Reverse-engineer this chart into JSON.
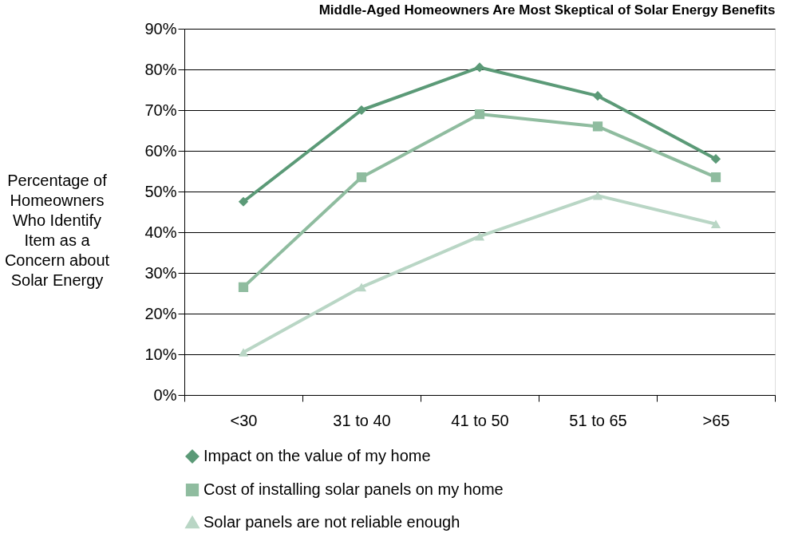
{
  "chart_data": {
    "type": "line",
    "title": "Middle-Aged Homeowners Are Most Skeptical of Solar Energy Benefits",
    "ylabel": "Percentage of\nHomeowners\nWho Identify\nItem as a\nConcern about\nSolar Energy",
    "categories": [
      "<30",
      "31 to 40",
      "41 to 50",
      "51 to 65",
      ">65"
    ],
    "series": [
      {
        "name": "Impact on the value of my home",
        "color": "#5b9a77",
        "marker": "diamond",
        "values": [
          47.5,
          70,
          80.5,
          73.5,
          58
        ]
      },
      {
        "name": "Cost of installing solar panels on my home",
        "color": "#8fbc9f",
        "marker": "square",
        "values": [
          26.5,
          53.5,
          69,
          66,
          53.5
        ]
      },
      {
        "name": "Solar panels are not reliable enough",
        "color": "#b9d6c5",
        "marker": "triangle",
        "values": [
          10.5,
          26.5,
          39,
          49,
          42
        ]
      }
    ],
    "ylim": [
      0,
      90
    ],
    "yticks": [
      {
        "value": 0,
        "label": "0%"
      },
      {
        "value": 10,
        "label": "10%"
      },
      {
        "value": 20,
        "label": "20%"
      },
      {
        "value": 30,
        "label": "30%"
      },
      {
        "value": 40,
        "label": "40%"
      },
      {
        "value": 50,
        "label": "50%"
      },
      {
        "value": 60,
        "label": "60%"
      },
      {
        "value": 70,
        "label": "70%"
      },
      {
        "value": 80,
        "label": "80%"
      },
      {
        "value": 90,
        "label": "90%"
      }
    ],
    "grid": "y",
    "legend": "bottom",
    "line_style": "solid"
  }
}
